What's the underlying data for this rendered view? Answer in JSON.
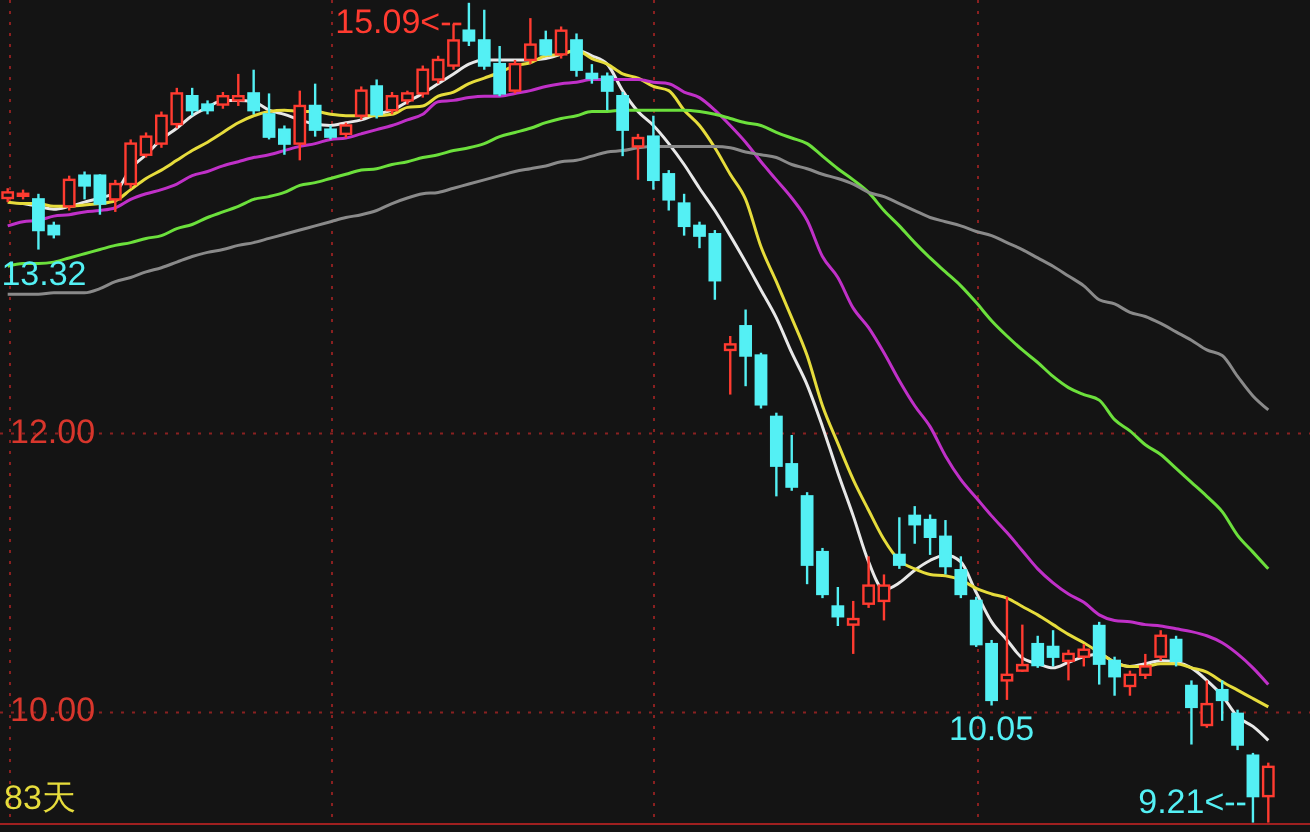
{
  "chart_data": {
    "type": "candlestick",
    "categories": [
      null,
      null,
      null,
      null,
      null,
      null,
      null,
      null,
      null,
      null,
      null,
      null,
      null,
      null,
      null,
      null,
      null,
      null,
      null,
      null,
      null,
      null,
      null,
      null,
      null,
      null,
      null,
      null,
      null,
      null,
      null,
      null,
      null,
      null,
      null,
      null,
      null,
      null,
      null,
      null,
      null,
      null,
      null,
      null,
      null,
      null,
      null,
      null,
      null,
      null,
      null,
      null,
      null,
      null,
      null,
      null,
      null,
      null,
      null,
      null,
      null,
      null,
      null,
      null,
      null,
      null,
      null,
      null,
      null,
      null,
      null,
      null,
      null,
      null,
      null,
      null,
      null,
      null,
      null,
      null,
      null,
      null,
      null
    ],
    "ohlc": [
      [
        13.69,
        13.76,
        13.66,
        13.73
      ],
      [
        13.71,
        13.75,
        13.68,
        13.72
      ],
      [
        13.68,
        13.72,
        13.32,
        13.46
      ],
      [
        13.49,
        13.52,
        13.4,
        13.43
      ],
      [
        13.63,
        13.85,
        13.6,
        13.82
      ],
      [
        13.85,
        13.88,
        13.68,
        13.78
      ],
      [
        13.85,
        13.86,
        13.57,
        13.65
      ],
      [
        13.68,
        13.82,
        13.59,
        13.79
      ],
      [
        13.79,
        14.11,
        13.76,
        14.08
      ],
      [
        14.0,
        14.16,
        13.98,
        14.13
      ],
      [
        14.08,
        14.31,
        14.05,
        14.28
      ],
      [
        14.22,
        14.48,
        14.19,
        14.44
      ],
      [
        14.42,
        14.48,
        14.28,
        14.32
      ],
      [
        14.36,
        14.39,
        14.29,
        14.32
      ],
      [
        14.36,
        14.45,
        14.33,
        14.42
      ],
      [
        14.39,
        14.58,
        14.35,
        14.42
      ],
      [
        14.44,
        14.61,
        14.29,
        14.32
      ],
      [
        14.29,
        14.44,
        14.11,
        14.13
      ],
      [
        14.18,
        14.21,
        14.0,
        14.08
      ],
      [
        14.08,
        14.46,
        13.96,
        14.35
      ],
      [
        14.35,
        14.51,
        14.13,
        14.18
      ],
      [
        14.18,
        14.21,
        14.11,
        14.13
      ],
      [
        14.15,
        14.23,
        14.12,
        14.21
      ],
      [
        14.28,
        14.49,
        14.25,
        14.46
      ],
      [
        14.49,
        14.54,
        14.26,
        14.29
      ],
      [
        14.32,
        14.45,
        14.29,
        14.42
      ],
      [
        14.39,
        14.46,
        14.36,
        14.44
      ],
      [
        14.44,
        14.64,
        14.41,
        14.61
      ],
      [
        14.54,
        14.71,
        14.51,
        14.68
      ],
      [
        14.64,
        14.94,
        14.61,
        14.82
      ],
      [
        14.89,
        15.09,
        14.78,
        14.82
      ],
      [
        14.82,
        15.04,
        14.61,
        14.64
      ],
      [
        14.65,
        14.78,
        14.42,
        14.44
      ],
      [
        14.46,
        14.68,
        14.44,
        14.65
      ],
      [
        14.68,
        14.98,
        14.65,
        14.79
      ],
      [
        14.82,
        14.89,
        14.71,
        14.72
      ],
      [
        14.72,
        14.92,
        14.69,
        14.89
      ],
      [
        14.82,
        14.87,
        14.56,
        14.61
      ],
      [
        14.58,
        14.65,
        14.51,
        14.55
      ],
      [
        14.56,
        14.59,
        14.32,
        14.46
      ],
      [
        14.42,
        14.45,
        13.99,
        14.18
      ],
      [
        14.06,
        14.15,
        13.82,
        14.12
      ],
      [
        14.13,
        14.28,
        13.75,
        13.82
      ],
      [
        13.86,
        13.89,
        13.6,
        13.68
      ],
      [
        13.65,
        13.72,
        13.42,
        13.49
      ],
      [
        13.49,
        13.52,
        13.33,
        13.42
      ],
      [
        13.43,
        13.46,
        12.96,
        13.1
      ],
      [
        12.6,
        12.7,
        12.28,
        12.64
      ],
      [
        12.77,
        12.89,
        12.34,
        12.56
      ],
      [
        12.56,
        12.58,
        12.18,
        12.21
      ],
      [
        12.12,
        12.15,
        11.55,
        11.77
      ],
      [
        11.78,
        11.99,
        11.59,
        11.62
      ],
      [
        11.55,
        11.58,
        10.92,
        11.06
      ],
      [
        11.15,
        11.18,
        10.82,
        10.85
      ],
      [
        10.76,
        10.9,
        10.62,
        10.69
      ],
      [
        10.63,
        10.8,
        10.42,
        10.67
      ],
      [
        10.78,
        11.12,
        10.75,
        10.91
      ],
      [
        10.8,
        10.99,
        10.66,
        10.91
      ],
      [
        11.13,
        11.4,
        11.03,
        11.06
      ],
      [
        11.41,
        11.48,
        11.21,
        11.35
      ],
      [
        11.38,
        11.42,
        11.13,
        11.26
      ],
      [
        11.26,
        11.38,
        10.99,
        11.05
      ],
      [
        11.02,
        11.12,
        10.82,
        10.85
      ],
      [
        10.8,
        10.83,
        10.47,
        10.49
      ],
      [
        10.49,
        10.52,
        10.05,
        10.09
      ],
      [
        10.23,
        10.83,
        10.09,
        10.27
      ],
      [
        10.3,
        10.63,
        10.29,
        10.34
      ],
      [
        10.49,
        10.55,
        10.32,
        10.34
      ],
      [
        10.47,
        10.59,
        10.33,
        10.4
      ],
      [
        10.37,
        10.45,
        10.23,
        10.42
      ],
      [
        10.4,
        10.49,
        10.33,
        10.45
      ],
      [
        10.62,
        10.65,
        10.2,
        10.35
      ],
      [
        10.37,
        10.4,
        10.12,
        10.26
      ],
      [
        10.19,
        10.3,
        10.12,
        10.27
      ],
      [
        10.27,
        10.42,
        10.24,
        10.33
      ],
      [
        10.4,
        10.59,
        10.37,
        10.55
      ],
      [
        10.52,
        10.55,
        10.33,
        10.37
      ],
      [
        10.19,
        10.23,
        9.77,
        10.04
      ],
      [
        9.91,
        10.23,
        9.89,
        10.06
      ],
      [
        10.16,
        10.23,
        9.94,
        10.09
      ],
      [
        9.99,
        10.02,
        9.73,
        9.77
      ],
      [
        9.69,
        9.71,
        9.21,
        9.4
      ],
      [
        9.4,
        9.64,
        9.21,
        9.61
      ]
    ],
    "series": [
      {
        "type": "line",
        "color": "#e8e8e8",
        "values": [
          null,
          13.65,
          13.63,
          13.61,
          13.63,
          13.66,
          13.69,
          13.73,
          13.9,
          14.0,
          14.11,
          14.19,
          14.28,
          14.34,
          14.39,
          14.39,
          14.38,
          14.32,
          14.29,
          14.25,
          14.22,
          14.21,
          14.23,
          14.25,
          14.29,
          14.32,
          14.38,
          14.44,
          14.51,
          14.58,
          14.65,
          14.68,
          14.68,
          14.68,
          14.68,
          14.69,
          14.72,
          14.75,
          14.71,
          14.65,
          14.46,
          14.31,
          14.21,
          14.08,
          13.93,
          13.76,
          13.6,
          13.42,
          13.23,
          13.03,
          12.83,
          12.58,
          12.35,
          12.05,
          11.72,
          11.41,
          11.08,
          10.88,
          10.93,
          11.02,
          11.09,
          11.13,
          11.08,
          10.86,
          10.65,
          10.52,
          10.39,
          10.35,
          10.32,
          10.36,
          10.4,
          10.42,
          10.36,
          10.33,
          10.35,
          10.37,
          10.36,
          10.32,
          10.23,
          10.12,
          9.97,
          9.9,
          9.8
        ]
      },
      {
        "type": "line",
        "color": "#e6dc3c",
        "values": [
          13.66,
          13.65,
          13.65,
          13.63,
          13.63,
          13.64,
          13.65,
          13.67,
          13.75,
          13.83,
          13.89,
          13.96,
          14.03,
          14.09,
          14.16,
          14.23,
          14.28,
          14.31,
          14.32,
          14.31,
          14.31,
          14.29,
          14.28,
          14.28,
          14.28,
          14.29,
          14.34,
          14.35,
          14.42,
          14.45,
          14.51,
          14.55,
          14.59,
          14.64,
          14.66,
          14.71,
          14.72,
          14.75,
          14.69,
          14.65,
          14.58,
          14.55,
          14.49,
          14.46,
          14.32,
          14.21,
          14.05,
          13.86,
          13.68,
          13.34,
          13.09,
          12.83,
          12.56,
          12.2,
          11.93,
          11.67,
          11.45,
          11.24,
          11.09,
          11.03,
          10.99,
          10.98,
          10.95,
          10.89,
          10.85,
          10.82,
          10.76,
          10.7,
          10.63,
          10.56,
          10.5,
          10.43,
          10.36,
          10.33,
          10.33,
          10.35,
          10.35,
          10.32,
          10.29,
          10.22,
          10.16,
          10.1,
          10.04
        ]
      },
      {
        "type": "line",
        "color": "#c030c8",
        "values": [
          13.49,
          13.52,
          13.53,
          13.56,
          13.57,
          13.59,
          13.6,
          13.62,
          13.68,
          13.72,
          13.75,
          13.79,
          13.85,
          13.88,
          13.92,
          13.95,
          13.98,
          14.0,
          14.03,
          14.06,
          14.08,
          14.11,
          14.12,
          14.15,
          14.18,
          14.21,
          14.25,
          14.29,
          14.38,
          14.39,
          14.41,
          14.42,
          14.42,
          14.44,
          14.46,
          14.49,
          14.51,
          14.52,
          14.54,
          14.54,
          14.54,
          14.54,
          14.52,
          14.51,
          14.45,
          14.41,
          14.32,
          14.21,
          14.09,
          13.95,
          13.82,
          13.69,
          13.53,
          13.27,
          13.12,
          12.9,
          12.76,
          12.58,
          12.38,
          12.2,
          12.05,
          11.84,
          11.67,
          11.54,
          11.41,
          11.29,
          11.16,
          11.03,
          10.93,
          10.85,
          10.79,
          10.7,
          10.66,
          10.65,
          10.63,
          10.62,
          10.6,
          10.58,
          10.55,
          10.5,
          10.42,
          10.32,
          10.2
        ]
      },
      {
        "type": "line",
        "color": "#6ce03c",
        "values": [
          13.2,
          13.22,
          13.22,
          13.23,
          13.26,
          13.29,
          13.32,
          13.35,
          13.37,
          13.4,
          13.42,
          13.47,
          13.5,
          13.55,
          13.59,
          13.63,
          13.68,
          13.7,
          13.73,
          13.78,
          13.8,
          13.83,
          13.86,
          13.89,
          13.9,
          13.93,
          13.95,
          13.98,
          14.0,
          14.03,
          14.05,
          14.08,
          14.13,
          14.16,
          14.19,
          14.23,
          14.26,
          14.28,
          14.31,
          14.31,
          14.32,
          14.32,
          14.32,
          14.32,
          14.32,
          14.31,
          14.29,
          14.26,
          14.23,
          14.21,
          14.16,
          14.12,
          14.08,
          13.99,
          13.9,
          13.82,
          13.73,
          13.6,
          13.49,
          13.37,
          13.26,
          13.16,
          13.06,
          12.94,
          12.81,
          12.7,
          12.6,
          12.51,
          12.41,
          12.33,
          12.28,
          12.24,
          12.1,
          12.02,
          11.92,
          11.85,
          11.75,
          11.65,
          11.55,
          11.44,
          11.27,
          11.15,
          11.03
        ]
      },
      {
        "type": "line",
        "color": "#8a8a8a",
        "values": [
          13.0,
          13.0,
          13.0,
          13.01,
          13.01,
          13.01,
          13.04,
          13.09,
          13.12,
          13.16,
          13.19,
          13.23,
          13.27,
          13.3,
          13.32,
          13.35,
          13.37,
          13.4,
          13.43,
          13.46,
          13.49,
          13.52,
          13.55,
          13.57,
          13.6,
          13.65,
          13.69,
          13.72,
          13.73,
          13.76,
          13.79,
          13.82,
          13.85,
          13.88,
          13.9,
          13.92,
          13.95,
          13.96,
          13.99,
          14.02,
          14.03,
          14.05,
          14.06,
          14.06,
          14.06,
          14.06,
          14.06,
          14.05,
          14.02,
          14.0,
          13.98,
          13.93,
          13.9,
          13.86,
          13.83,
          13.79,
          13.73,
          13.7,
          13.65,
          13.6,
          13.55,
          13.52,
          13.49,
          13.45,
          13.42,
          13.37,
          13.32,
          13.26,
          13.2,
          13.13,
          13.06,
          12.96,
          12.93,
          12.87,
          12.84,
          12.79,
          12.73,
          12.67,
          12.6,
          12.56,
          12.41,
          12.27,
          12.17
        ]
      }
    ],
    "ylim": [
      9.2,
      15.11
    ],
    "yticks": [
      {
        "value": 12,
        "label": "12.00"
      },
      {
        "value": 10,
        "label": "10.00"
      }
    ],
    "grid": true,
    "tick_labels": "y",
    "annotations": [
      "15.09<--",
      {
        "text": "13.32",
        "y": 13.32
      },
      {
        "text": "10.05",
        "y": 10.05
      },
      "9.21<--",
      "83天"
    ]
  }
}
